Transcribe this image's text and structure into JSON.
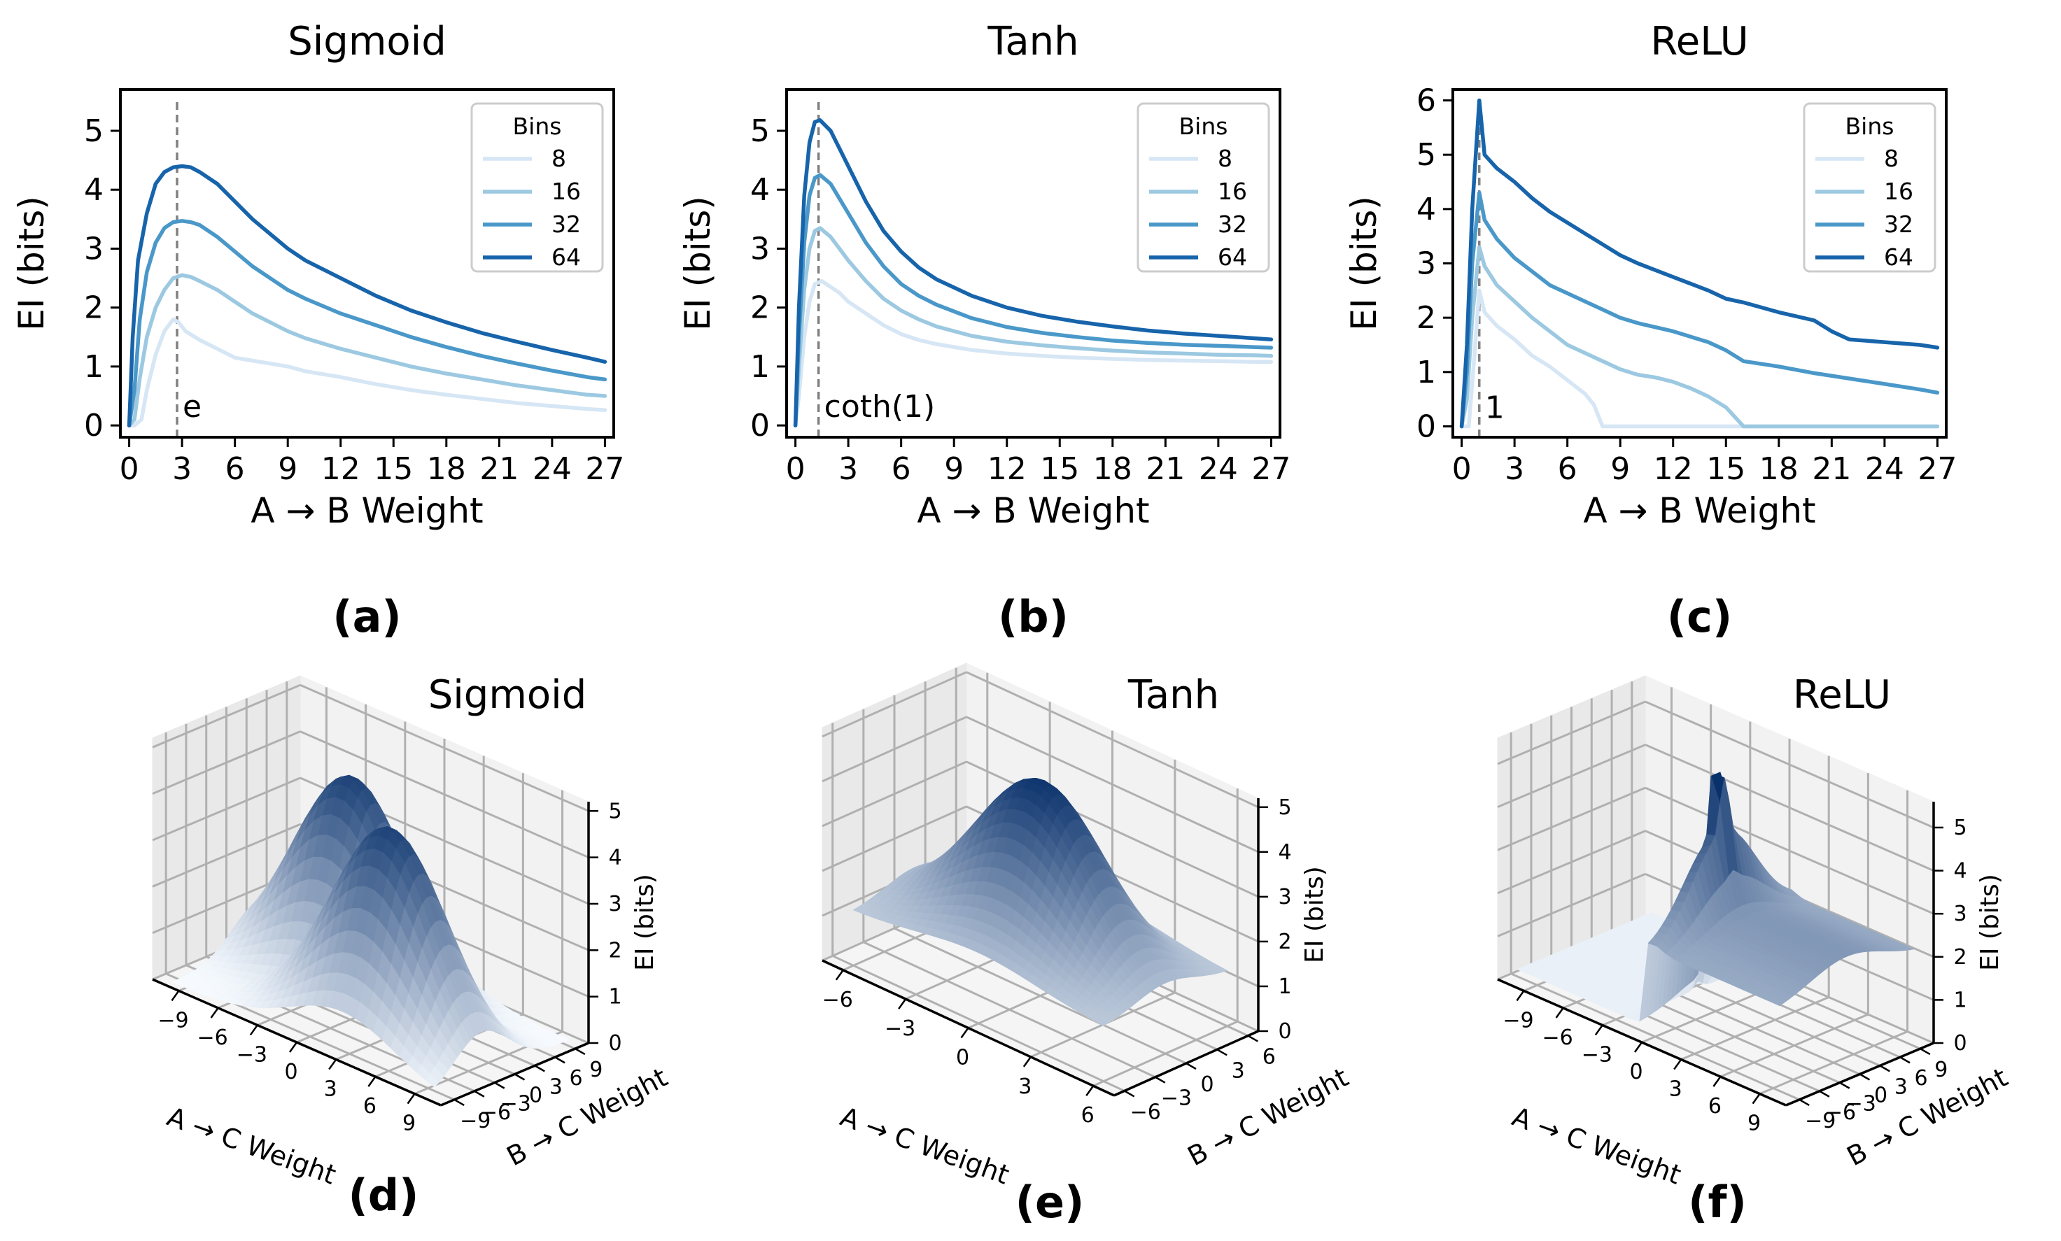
{
  "colors": {
    "bins_8": "#d6e6f4",
    "bins_16": "#9cc9e1",
    "bins_32": "#4a98c9",
    "bins_64": "#1764ab",
    "marker": "#808080",
    "surface_dark": "#08306b",
    "surface_light": "#f7fbff"
  },
  "chart_data": [
    {
      "id": "a",
      "type": "line",
      "panel_label": "(a)",
      "title": "Sigmoid",
      "xlabel": "A → B Weight",
      "ylabel": "EI (bits)",
      "xlim": [
        -0.5,
        27.5
      ],
      "ylim": [
        -0.2,
        5.7
      ],
      "xticks": [
        0,
        3,
        6,
        9,
        12,
        15,
        18,
        21,
        24,
        27
      ],
      "yticks": [
        0,
        1,
        2,
        3,
        4,
        5
      ],
      "legend": {
        "title": "Bins",
        "position": "top-right"
      },
      "marker": {
        "x": 2.718,
        "label": "e"
      },
      "series": [
        {
          "name": "8",
          "color_key": "bins_8",
          "x": [
            0,
            0.3,
            0.7,
            1,
            1.5,
            2,
            2.5,
            2.8,
            3.2,
            4,
            5,
            6,
            7,
            8,
            9,
            10,
            12,
            14,
            16,
            18,
            20,
            22,
            24,
            26,
            27
          ],
          "y": [
            0,
            0,
            0.1,
            0.6,
            1.2,
            1.6,
            1.8,
            1.75,
            1.6,
            1.45,
            1.3,
            1.15,
            1.1,
            1.05,
            1.0,
            0.92,
            0.82,
            0.7,
            0.6,
            0.52,
            0.45,
            0.38,
            0.33,
            0.28,
            0.26
          ]
        },
        {
          "name": "16",
          "color_key": "bins_16",
          "x": [
            0,
            0.3,
            0.6,
            1,
            1.5,
            2,
            2.5,
            3,
            3.5,
            4,
            5,
            6,
            7,
            8,
            9,
            10,
            12,
            14,
            16,
            18,
            20,
            22,
            24,
            26,
            27
          ],
          "y": [
            0,
            0.1,
            0.8,
            1.5,
            2.0,
            2.3,
            2.5,
            2.55,
            2.52,
            2.45,
            2.3,
            2.1,
            1.9,
            1.75,
            1.6,
            1.48,
            1.3,
            1.15,
            1.0,
            0.88,
            0.78,
            0.68,
            0.6,
            0.52,
            0.5
          ]
        },
        {
          "name": "32",
          "color_key": "bins_32",
          "x": [
            0,
            0.3,
            0.6,
            1,
            1.5,
            2,
            2.5,
            3,
            3.5,
            4,
            5,
            6,
            7,
            8,
            9,
            10,
            12,
            14,
            16,
            18,
            20,
            22,
            24,
            26,
            27
          ],
          "y": [
            0,
            0.6,
            1.8,
            2.6,
            3.1,
            3.35,
            3.45,
            3.47,
            3.45,
            3.4,
            3.2,
            2.95,
            2.7,
            2.5,
            2.3,
            2.15,
            1.9,
            1.7,
            1.5,
            1.33,
            1.18,
            1.05,
            0.93,
            0.82,
            0.78
          ]
        },
        {
          "name": "64",
          "color_key": "bins_64",
          "x": [
            0,
            0.2,
            0.5,
            1,
            1.5,
            2,
            2.5,
            3,
            3.5,
            4,
            5,
            6,
            7,
            8,
            9,
            10,
            12,
            14,
            16,
            18,
            20,
            22,
            24,
            26,
            27
          ],
          "y": [
            0,
            1.5,
            2.8,
            3.6,
            4.1,
            4.3,
            4.38,
            4.4,
            4.38,
            4.3,
            4.1,
            3.8,
            3.5,
            3.25,
            3.0,
            2.8,
            2.5,
            2.2,
            1.95,
            1.75,
            1.57,
            1.42,
            1.28,
            1.15,
            1.08
          ]
        }
      ]
    },
    {
      "id": "b",
      "type": "line",
      "panel_label": "(b)",
      "title": "Tanh",
      "xlabel": "A → B Weight",
      "ylabel": "EI (bits)",
      "xlim": [
        -0.5,
        27.5
      ],
      "ylim": [
        -0.2,
        5.7
      ],
      "xticks": [
        0,
        3,
        6,
        9,
        12,
        15,
        18,
        21,
        24,
        27
      ],
      "yticks": [
        0,
        1,
        2,
        3,
        4,
        5
      ],
      "legend": {
        "title": "Bins",
        "position": "top-right"
      },
      "marker": {
        "x": 1.313,
        "label": "coth(1)"
      },
      "series": [
        {
          "name": "8",
          "color_key": "bins_8",
          "x": [
            0,
            0.2,
            0.5,
            0.8,
            1.1,
            1.5,
            2,
            2.5,
            3,
            4,
            5,
            6,
            7,
            8,
            10,
            12,
            14,
            16,
            18,
            20,
            22,
            24,
            26,
            27
          ],
          "y": [
            0,
            0.5,
            1.5,
            2.1,
            2.4,
            2.45,
            2.35,
            2.25,
            2.1,
            1.9,
            1.7,
            1.55,
            1.45,
            1.38,
            1.28,
            1.22,
            1.18,
            1.15,
            1.13,
            1.11,
            1.1,
            1.09,
            1.08,
            1.08
          ]
        },
        {
          "name": "16",
          "color_key": "bins_16",
          "x": [
            0,
            0.2,
            0.5,
            0.8,
            1.1,
            1.4,
            2,
            2.5,
            3,
            4,
            5,
            6,
            7,
            8,
            10,
            12,
            14,
            16,
            18,
            20,
            22,
            24,
            26,
            27
          ],
          "y": [
            0,
            1.0,
            2.3,
            3.0,
            3.3,
            3.35,
            3.2,
            3.0,
            2.8,
            2.45,
            2.15,
            1.95,
            1.8,
            1.68,
            1.52,
            1.42,
            1.36,
            1.31,
            1.27,
            1.24,
            1.22,
            1.2,
            1.19,
            1.18
          ]
        },
        {
          "name": "32",
          "color_key": "bins_32",
          "x": [
            0,
            0.2,
            0.5,
            0.8,
            1.1,
            1.4,
            2,
            2.5,
            3,
            4,
            5,
            6,
            7,
            8,
            10,
            12,
            14,
            16,
            18,
            20,
            22,
            24,
            26,
            27
          ],
          "y": [
            0,
            1.5,
            3.1,
            3.9,
            4.2,
            4.25,
            4.1,
            3.85,
            3.6,
            3.1,
            2.7,
            2.4,
            2.2,
            2.05,
            1.82,
            1.67,
            1.57,
            1.5,
            1.44,
            1.4,
            1.37,
            1.35,
            1.33,
            1.32
          ]
        },
        {
          "name": "64",
          "color_key": "bins_64",
          "x": [
            0,
            0.2,
            0.5,
            0.8,
            1.1,
            1.4,
            2,
            2.5,
            3,
            4,
            5,
            6,
            7,
            8,
            10,
            12,
            14,
            16,
            18,
            20,
            22,
            24,
            26,
            27
          ],
          "y": [
            0,
            2.0,
            3.9,
            4.8,
            5.15,
            5.18,
            5.0,
            4.7,
            4.4,
            3.8,
            3.3,
            2.95,
            2.68,
            2.48,
            2.2,
            2.0,
            1.86,
            1.76,
            1.68,
            1.61,
            1.56,
            1.52,
            1.48,
            1.46
          ]
        }
      ]
    },
    {
      "id": "c",
      "type": "line",
      "panel_label": "(c)",
      "title": "ReLU",
      "xlabel": "A → B Weight",
      "ylabel": "EI (bits)",
      "xlim": [
        -0.5,
        27.5
      ],
      "ylim": [
        -0.2,
        6.2
      ],
      "xticks": [
        0,
        3,
        6,
        9,
        12,
        15,
        18,
        21,
        24,
        27
      ],
      "yticks": [
        0,
        1,
        2,
        3,
        4,
        5,
        6
      ],
      "legend": {
        "title": "Bins",
        "position": "top-right"
      },
      "marker": {
        "x": 1,
        "label": "1"
      },
      "series": [
        {
          "name": "8",
          "color_key": "bins_8",
          "x": [
            0,
            0.4,
            0.7,
            1,
            1.3,
            2,
            3,
            4,
            5,
            6,
            7,
            7.5,
            8,
            9,
            12,
            15,
            18,
            21,
            24,
            27
          ],
          "y": [
            0,
            0,
            1.2,
            2.5,
            2.1,
            1.85,
            1.6,
            1.3,
            1.1,
            0.85,
            0.6,
            0.4,
            0,
            0,
            0,
            0,
            0,
            0,
            0,
            0
          ]
        },
        {
          "name": "16",
          "color_key": "bins_16",
          "x": [
            0,
            0.3,
            0.6,
            1,
            1.3,
            2,
            3,
            4,
            5,
            6,
            7,
            8,
            9,
            10,
            11,
            12,
            13,
            14,
            15,
            16,
            18,
            21,
            24,
            27
          ],
          "y": [
            0,
            0.5,
            2.0,
            3.3,
            2.95,
            2.6,
            2.3,
            2.0,
            1.75,
            1.5,
            1.35,
            1.2,
            1.05,
            0.95,
            0.9,
            0.82,
            0.7,
            0.55,
            0.35,
            0,
            0,
            0,
            0,
            0
          ]
        },
        {
          "name": "32",
          "color_key": "bins_32",
          "x": [
            0,
            0.3,
            0.6,
            1,
            1.3,
            2,
            3,
            4,
            5,
            6,
            7,
            8,
            9,
            10,
            12,
            14,
            15,
            16,
            18,
            20,
            22,
            24,
            26,
            27
          ],
          "y": [
            0,
            1.0,
            3.0,
            4.3,
            3.8,
            3.45,
            3.1,
            2.85,
            2.6,
            2.45,
            2.3,
            2.15,
            2.0,
            1.9,
            1.75,
            1.55,
            1.4,
            1.2,
            1.1,
            0.98,
            0.88,
            0.78,
            0.68,
            0.62
          ]
        },
        {
          "name": "64",
          "color_key": "bins_64",
          "x": [
            0,
            0.3,
            0.6,
            1,
            1.3,
            2,
            3,
            4,
            5,
            6,
            7,
            8,
            9,
            10,
            12,
            14,
            15,
            16,
            18,
            20,
            21,
            22,
            24,
            26,
            27
          ],
          "y": [
            0,
            1.5,
            4.0,
            6.0,
            5.0,
            4.75,
            4.5,
            4.2,
            3.95,
            3.75,
            3.55,
            3.35,
            3.15,
            3.0,
            2.75,
            2.5,
            2.35,
            2.28,
            2.1,
            1.95,
            1.75,
            1.6,
            1.55,
            1.5,
            1.45
          ]
        }
      ]
    },
    {
      "id": "d",
      "type": "surface",
      "panel_label": "(d)",
      "title": "Sigmoid",
      "xlabel": "A → C Weight",
      "ylabel": "B → C Weight",
      "zlabel": "EI (bits)",
      "xticks": [
        -9,
        -6,
        -3,
        0,
        3,
        6,
        9
      ],
      "yticks": [
        -9,
        -6,
        -3,
        0,
        3,
        6,
        9
      ],
      "zticks": [
        0,
        1,
        2,
        3,
        4,
        5
      ],
      "xlim": [
        -11,
        11
      ],
      "ylim": [
        -11,
        11
      ],
      "zlim": [
        0,
        5.2
      ],
      "peaks": [
        {
          "x": -3,
          "y": 3,
          "height": 4.5
        },
        {
          "x": 3,
          "y": -3,
          "height": 4.5
        }
      ]
    },
    {
      "id": "e",
      "type": "surface",
      "panel_label": "(e)",
      "title": "Tanh",
      "xlabel": "A → C Weight",
      "ylabel": "B → C Weight",
      "zlabel": "EI (bits)",
      "xticks": [
        -6,
        -3,
        0,
        3,
        6
      ],
      "yticks": [
        -6,
        -3,
        0,
        3,
        6
      ],
      "zticks": [
        0,
        1,
        2,
        3,
        4,
        5
      ],
      "xlim": [
        -7,
        7
      ],
      "ylim": [
        -7,
        7
      ],
      "zlim": [
        0,
        5.2
      ],
      "peaks": [
        {
          "x": 0,
          "y": 0,
          "height": 4.8
        }
      ]
    },
    {
      "id": "f",
      "type": "surface",
      "panel_label": "(f)",
      "title": "ReLU",
      "xlabel": "A → C Weight",
      "ylabel": "B → C Weight",
      "zlabel": "EI (bits)",
      "xticks": [
        -9,
        -6,
        -3,
        0,
        3,
        6,
        9
      ],
      "yticks": [
        -9,
        -6,
        -3,
        0,
        3,
        6,
        9
      ],
      "zticks": [
        0,
        1,
        2,
        3,
        4,
        5
      ],
      "xlim": [
        -11,
        11
      ],
      "ylim": [
        -11,
        11
      ],
      "zlim": [
        0,
        5.6
      ],
      "peaks": [
        {
          "x": 0,
          "y": 0,
          "height": 5.5
        }
      ]
    }
  ]
}
